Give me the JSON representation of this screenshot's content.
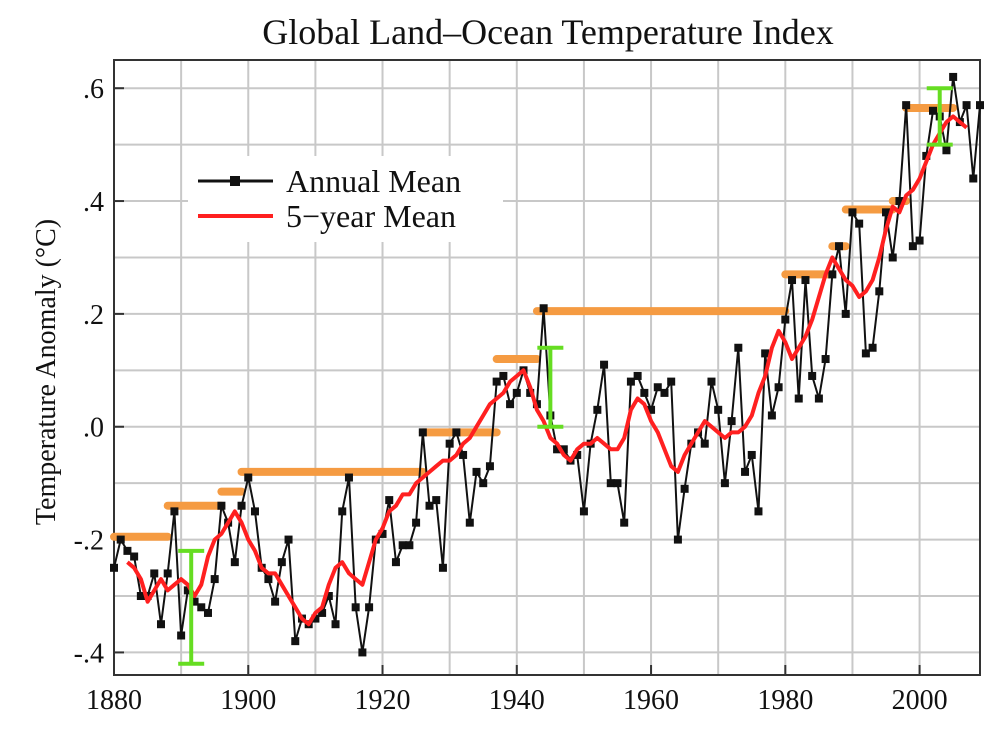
{
  "chart_data": {
    "type": "line",
    "title": "Global Land–Ocean Temperature Index",
    "xlabel": "",
    "ylabel": "Temperature Anomaly (°C)",
    "xlim": [
      1880,
      2009
    ],
    "ylim": [
      -0.44,
      0.65
    ],
    "x_ticks": [
      1880,
      1900,
      1920,
      1940,
      1960,
      1980,
      2000
    ],
    "x_tick_labels": [
      "1880",
      "1900",
      "1920",
      "1940",
      "1960",
      "1980",
      "2000"
    ],
    "y_ticks": [
      -0.4,
      -0.2,
      0.0,
      0.2,
      0.4,
      0.6
    ],
    "y_tick_labels": [
      "-.4",
      "-.2",
      ".0",
      ".2",
      ".4",
      ".6"
    ],
    "grid": true,
    "legend_position": "upper-left",
    "series": [
      {
        "name": "Annual Mean",
        "color": "#111111",
        "marker": "square",
        "x": [
          1880,
          1881,
          1882,
          1883,
          1884,
          1885,
          1886,
          1887,
          1888,
          1889,
          1890,
          1891,
          1892,
          1893,
          1894,
          1895,
          1896,
          1897,
          1898,
          1899,
          1900,
          1901,
          1902,
          1903,
          1904,
          1905,
          1906,
          1907,
          1908,
          1909,
          1910,
          1911,
          1912,
          1913,
          1914,
          1915,
          1916,
          1917,
          1918,
          1919,
          1920,
          1921,
          1922,
          1923,
          1924,
          1925,
          1926,
          1927,
          1928,
          1929,
          1930,
          1931,
          1932,
          1933,
          1934,
          1935,
          1936,
          1937,
          1938,
          1939,
          1940,
          1941,
          1942,
          1943,
          1944,
          1945,
          1946,
          1947,
          1948,
          1949,
          1950,
          1951,
          1952,
          1953,
          1954,
          1955,
          1956,
          1957,
          1958,
          1959,
          1960,
          1961,
          1962,
          1963,
          1964,
          1965,
          1966,
          1967,
          1968,
          1969,
          1970,
          1971,
          1972,
          1973,
          1974,
          1975,
          1976,
          1977,
          1978,
          1979,
          1980,
          1981,
          1982,
          1983,
          1984,
          1985,
          1986,
          1987,
          1988,
          1989,
          1990,
          1991,
          1992,
          1993,
          1994,
          1995,
          1996,
          1997,
          1998,
          1999,
          2000,
          2001,
          2002,
          2003,
          2004,
          2005,
          2006,
          2007,
          2008,
          2009
        ],
        "values": [
          -0.25,
          -0.2,
          -0.22,
          -0.23,
          -0.3,
          -0.3,
          -0.26,
          -0.35,
          -0.26,
          -0.15,
          -0.37,
          -0.29,
          -0.31,
          -0.32,
          -0.33,
          -0.27,
          -0.14,
          -0.17,
          -0.24,
          -0.14,
          -0.09,
          -0.15,
          -0.25,
          -0.27,
          -0.31,
          -0.24,
          -0.2,
          -0.38,
          -0.34,
          -0.35,
          -0.34,
          -0.33,
          -0.3,
          -0.35,
          -0.15,
          -0.09,
          -0.32,
          -0.4,
          -0.32,
          -0.2,
          -0.19,
          -0.13,
          -0.24,
          -0.21,
          -0.21,
          -0.17,
          -0.01,
          -0.14,
          -0.13,
          -0.25,
          -0.03,
          -0.01,
          -0.05,
          -0.17,
          -0.08,
          -0.1,
          -0.07,
          0.08,
          0.09,
          0.04,
          0.06,
          0.1,
          0.06,
          0.04,
          0.21,
          0.02,
          -0.04,
          -0.04,
          -0.06,
          -0.05,
          -0.15,
          -0.03,
          0.03,
          0.11,
          -0.1,
          -0.1,
          -0.17,
          0.08,
          0.09,
          0.06,
          0.03,
          0.07,
          0.06,
          0.08,
          -0.2,
          -0.11,
          -0.03,
          -0.01,
          -0.03,
          0.08,
          0.03,
          -0.1,
          0.01,
          0.14,
          -0.08,
          -0.05,
          -0.15,
          0.13,
          0.02,
          0.07,
          0.19,
          0.26,
          0.05,
          0.26,
          0.09,
          0.05,
          0.12,
          0.27,
          0.32,
          0.2,
          0.38,
          0.36,
          0.13,
          0.14,
          0.24,
          0.38,
          0.3,
          0.4,
          0.57,
          0.32,
          0.33,
          0.48,
          0.56,
          0.55,
          0.49,
          0.62,
          0.54,
          0.57,
          0.44,
          0.57
        ]
      },
      {
        "name": "5−year Mean",
        "color": "#ff2020",
        "x": [
          1882,
          1883,
          1884,
          1885,
          1886,
          1887,
          1888,
          1889,
          1890,
          1891,
          1892,
          1893,
          1894,
          1895,
          1896,
          1897,
          1898,
          1899,
          1900,
          1901,
          1902,
          1903,
          1904,
          1905,
          1906,
          1907,
          1908,
          1909,
          1910,
          1911,
          1912,
          1913,
          1914,
          1915,
          1916,
          1917,
          1918,
          1919,
          1920,
          1921,
          1922,
          1923,
          1924,
          1925,
          1926,
          1927,
          1928,
          1929,
          1930,
          1931,
          1932,
          1933,
          1934,
          1935,
          1936,
          1937,
          1938,
          1939,
          1940,
          1941,
          1942,
          1943,
          1944,
          1945,
          1946,
          1947,
          1948,
          1949,
          1950,
          1951,
          1952,
          1953,
          1954,
          1955,
          1956,
          1957,
          1958,
          1959,
          1960,
          1961,
          1962,
          1963,
          1964,
          1965,
          1966,
          1967,
          1968,
          1969,
          1970,
          1971,
          1972,
          1973,
          1974,
          1975,
          1976,
          1977,
          1978,
          1979,
          1980,
          1981,
          1982,
          1983,
          1984,
          1985,
          1986,
          1987,
          1988,
          1989,
          1990,
          1991,
          1992,
          1993,
          1994,
          1995,
          1996,
          1997,
          1998,
          1999,
          2000,
          2001,
          2002,
          2003,
          2004,
          2005,
          2006,
          2007
        ],
        "values": [
          -0.24,
          -0.25,
          -0.27,
          -0.31,
          -0.29,
          -0.27,
          -0.29,
          -0.28,
          -0.27,
          -0.28,
          -0.3,
          -0.28,
          -0.23,
          -0.2,
          -0.19,
          -0.17,
          -0.15,
          -0.17,
          -0.2,
          -0.22,
          -0.25,
          -0.26,
          -0.26,
          -0.28,
          -0.3,
          -0.32,
          -0.34,
          -0.35,
          -0.33,
          -0.32,
          -0.28,
          -0.25,
          -0.24,
          -0.26,
          -0.27,
          -0.28,
          -0.24,
          -0.2,
          -0.18,
          -0.15,
          -0.14,
          -0.12,
          -0.12,
          -0.1,
          -0.09,
          -0.08,
          -0.07,
          -0.06,
          -0.06,
          -0.05,
          -0.03,
          -0.02,
          0.0,
          0.02,
          0.04,
          0.05,
          0.06,
          0.08,
          0.09,
          0.1,
          0.07,
          0.03,
          0.01,
          -0.02,
          -0.03,
          -0.05,
          -0.06,
          -0.04,
          -0.03,
          -0.03,
          -0.02,
          -0.03,
          -0.04,
          -0.04,
          -0.02,
          0.03,
          0.05,
          0.04,
          0.01,
          -0.01,
          -0.04,
          -0.07,
          -0.08,
          -0.05,
          -0.03,
          -0.01,
          0.01,
          0.0,
          -0.01,
          -0.02,
          -0.01,
          -0.01,
          0.0,
          0.02,
          0.06,
          0.09,
          0.14,
          0.17,
          0.15,
          0.12,
          0.14,
          0.16,
          0.19,
          0.23,
          0.27,
          0.3,
          0.28,
          0.26,
          0.25,
          0.23,
          0.24,
          0.26,
          0.3,
          0.35,
          0.39,
          0.38,
          0.41,
          0.42,
          0.44,
          0.47,
          0.5,
          0.52,
          0.54,
          0.55,
          0.54,
          0.53
        ]
      }
    ],
    "step_segments": {
      "color": "#f59b42",
      "segments": [
        {
          "x0": 1880,
          "x1": 1888,
          "y": -0.195
        },
        {
          "x0": 1888,
          "x1": 1896,
          "y": -0.14
        },
        {
          "x0": 1896,
          "x1": 1899,
          "y": -0.115
        },
        {
          "x0": 1899,
          "x1": 1926,
          "y": -0.08
        },
        {
          "x0": 1926,
          "x1": 1937,
          "y": -0.01
        },
        {
          "x0": 1937,
          "x1": 1943,
          "y": 0.12
        },
        {
          "x0": 1943,
          "x1": 1980,
          "y": 0.205
        },
        {
          "x0": 1980,
          "x1": 1987,
          "y": 0.27
        },
        {
          "x0": 1987,
          "x1": 1989,
          "y": 0.32
        },
        {
          "x0": 1989,
          "x1": 1996,
          "y": 0.385
        },
        {
          "x0": 1996,
          "x1": 1998,
          "y": 0.4
        },
        {
          "x0": 1998,
          "x1": 2005,
          "y": 0.565
        }
      ]
    },
    "error_bars": {
      "color": "#66dd22",
      "bars": [
        {
          "x": 1891.5,
          "low": -0.42,
          "high": -0.22
        },
        {
          "x": 1945,
          "low": 0.0,
          "high": 0.14
        },
        {
          "x": 2003,
          "low": 0.5,
          "high": 0.6
        }
      ]
    }
  }
}
